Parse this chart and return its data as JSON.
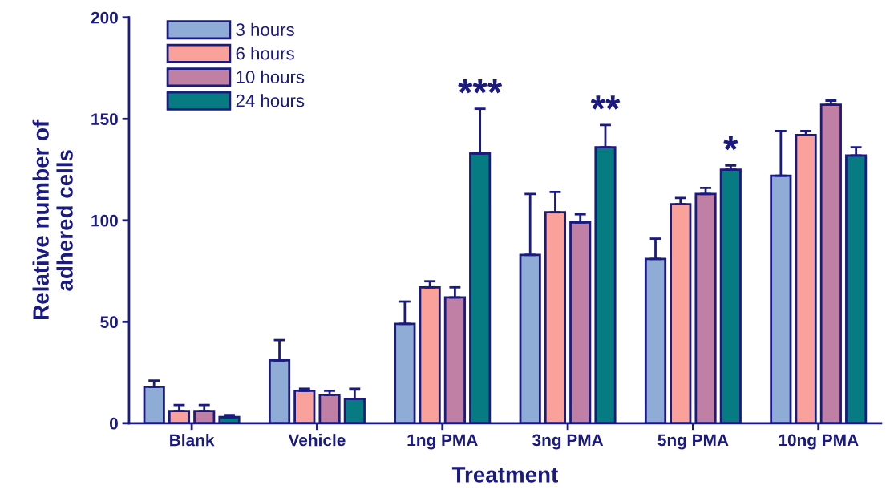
{
  "chart_data": {
    "type": "bar",
    "xlabel": "Treatment",
    "ylabel": "Relative number of\nadhered cells",
    "categories": [
      "Blank",
      "Vehicle",
      "1ng PMA",
      "3ng PMA",
      "5ng PMA",
      "10ng PMA"
    ],
    "series": [
      {
        "name": "3 hours",
        "color": "#8eacd6",
        "values": [
          18,
          31,
          49,
          83,
          81,
          122
        ],
        "errors": [
          [
            18,
            21
          ],
          [
            31,
            41
          ],
          [
            49,
            60
          ],
          [
            83,
            113
          ],
          [
            81,
            91
          ],
          [
            122,
            144
          ]
        ]
      },
      {
        "name": "6 hours",
        "color": "#f9a19a",
        "values": [
          6,
          16,
          67,
          104,
          108,
          142
        ],
        "errors": [
          [
            6,
            9
          ],
          [
            16,
            17
          ],
          [
            67,
            70
          ],
          [
            104,
            114
          ],
          [
            108,
            111
          ],
          [
            142,
            144
          ]
        ]
      },
      {
        "name": "10 hours",
        "color": "#c07fa4",
        "values": [
          6,
          14,
          62,
          99,
          113,
          157
        ],
        "errors": [
          [
            6,
            9
          ],
          [
            14,
            16
          ],
          [
            62,
            67
          ],
          [
            99,
            103
          ],
          [
            113,
            116
          ],
          [
            157,
            159
          ]
        ]
      },
      {
        "name": "24 hours",
        "color": "#067b82",
        "values": [
          3,
          12,
          133,
          136,
          125,
          132
        ],
        "errors": [
          [
            3,
            4
          ],
          [
            12,
            17
          ],
          [
            133,
            155
          ],
          [
            136,
            147
          ],
          [
            125,
            127
          ],
          [
            132,
            136
          ]
        ]
      }
    ],
    "ylim": [
      0,
      200
    ],
    "yticks": [
      0,
      50,
      100,
      150,
      200
    ],
    "annotations": [
      "***",
      "**",
      "*"
    ],
    "grid": false,
    "legend": "top left"
  }
}
